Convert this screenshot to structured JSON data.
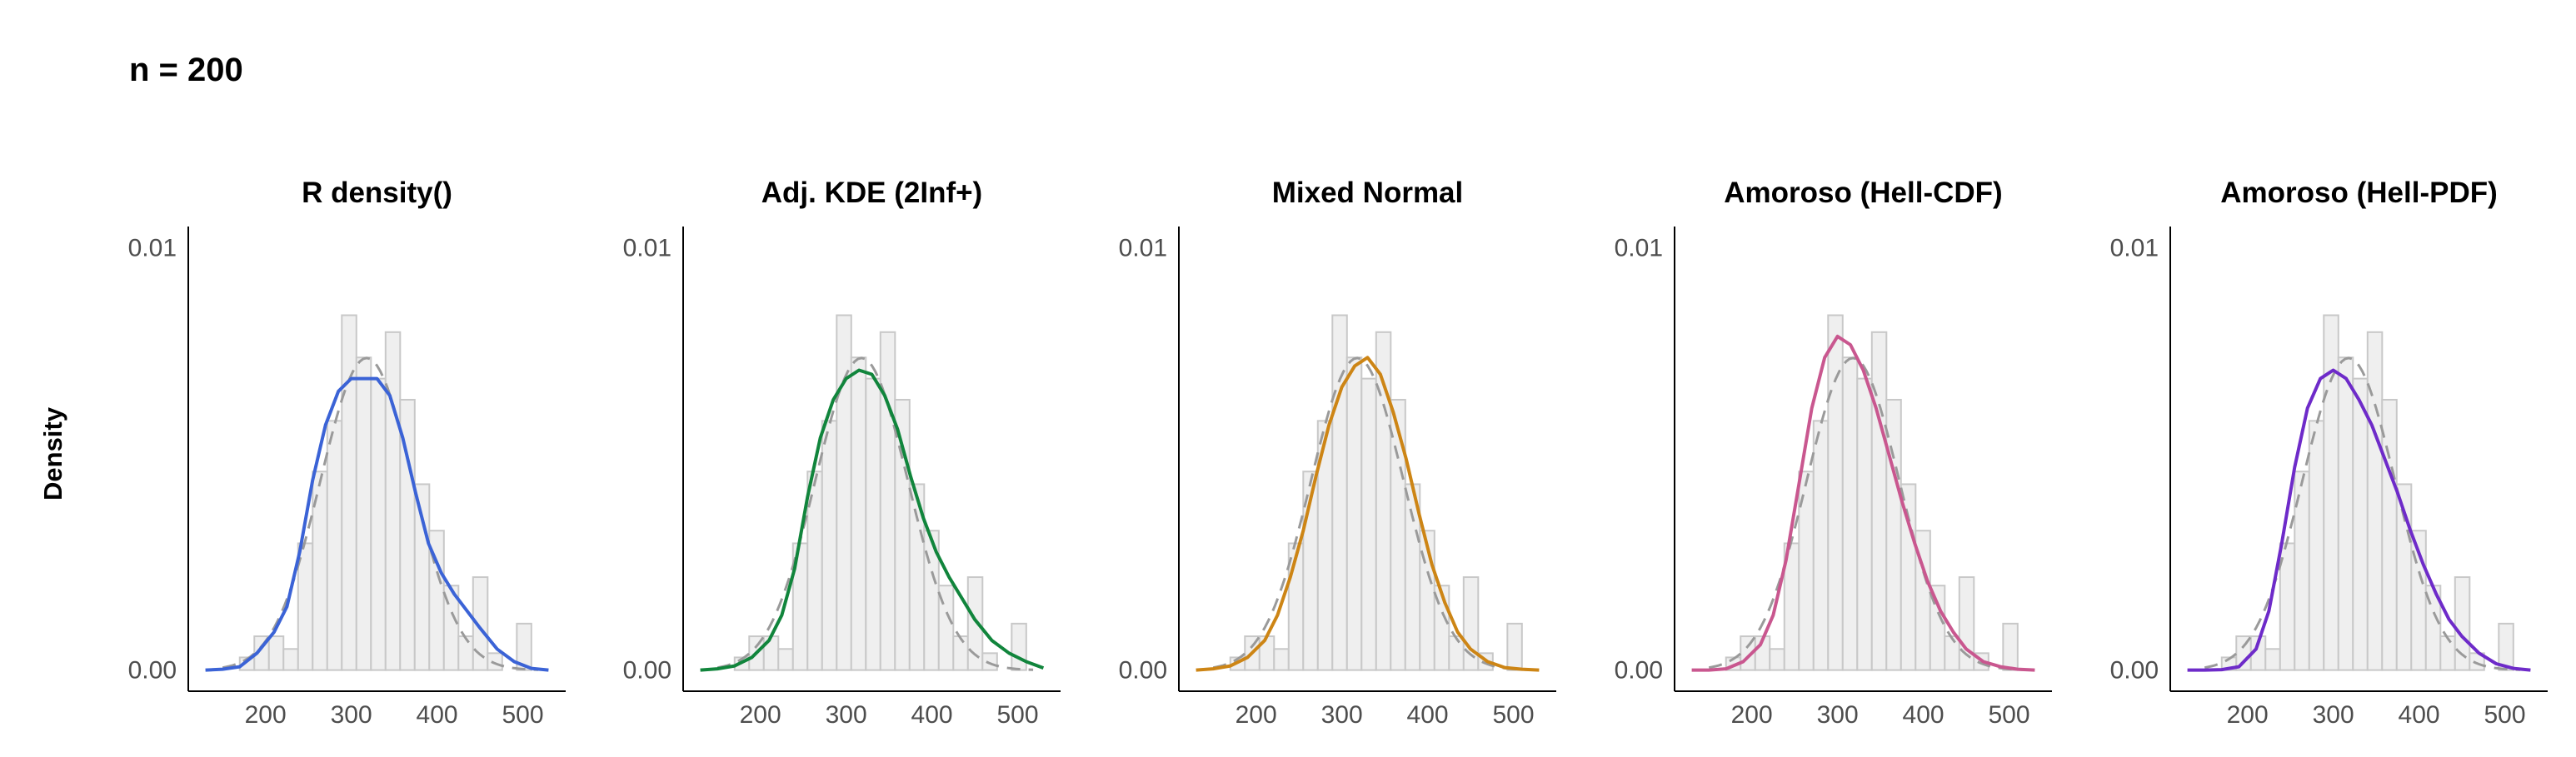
{
  "page": {
    "title": "n = 200",
    "ylabel": "Density"
  },
  "chart_data": {
    "type": "histogram",
    "shared": {
      "x_ticks": [
        200,
        300,
        400,
        500
      ],
      "y_ticks": [
        0.0,
        0.01
      ],
      "y_tick_labels": [
        "0.00",
        "0.01"
      ],
      "xlim": [
        110,
        550
      ],
      "ylim": [
        -0.0005,
        0.0105
      ],
      "bin_width": 17,
      "bins": [
        {
          "x": 170,
          "height": 0.0003
        },
        {
          "x": 187,
          "height": 0.0008
        },
        {
          "x": 204,
          "height": 0.0008
        },
        {
          "x": 221,
          "height": 0.0005
        },
        {
          "x": 238,
          "height": 0.003
        },
        {
          "x": 255,
          "height": 0.0047
        },
        {
          "x": 272,
          "height": 0.0059
        },
        {
          "x": 289,
          "height": 0.0084
        },
        {
          "x": 306,
          "height": 0.0074
        },
        {
          "x": 323,
          "height": 0.0069
        },
        {
          "x": 340,
          "height": 0.008
        },
        {
          "x": 357,
          "height": 0.0064
        },
        {
          "x": 374,
          "height": 0.0044
        },
        {
          "x": 391,
          "height": 0.0033
        },
        {
          "x": 408,
          "height": 0.002
        },
        {
          "x": 425,
          "height": 0.0008
        },
        {
          "x": 442,
          "height": 0.0022
        },
        {
          "x": 459,
          "height": 0.0004
        },
        {
          "x": 476,
          "height": 0.0
        },
        {
          "x": 493,
          "height": 0.0011
        }
      ],
      "reference_curve": {
        "style": "dashed",
        "color": "#9a9a9a",
        "mean": 318,
        "sd": 54
      }
    },
    "panels": [
      {
        "title": "R density()",
        "color": "#3b63d6",
        "curve_x": [
          130,
          150,
          170,
          190,
          210,
          225,
          240,
          255,
          270,
          285,
          300,
          315,
          330,
          345,
          360,
          375,
          390,
          405,
          420,
          435,
          450,
          470,
          490,
          510,
          530
        ],
        "curve_y": [
          0.0,
          2e-05,
          8e-05,
          0.0004,
          0.0009,
          0.0015,
          0.0028,
          0.0045,
          0.0058,
          0.0066,
          0.0069,
          0.0069,
          0.0069,
          0.0065,
          0.0055,
          0.0042,
          0.003,
          0.0023,
          0.0018,
          0.0014,
          0.001,
          0.0005,
          0.0002,
          4e-05,
          0.0
        ]
      },
      {
        "title": "Adj. KDE (2Inf+)",
        "color": "#11853c",
        "curve_x": [
          130,
          150,
          170,
          190,
          210,
          225,
          240,
          255,
          270,
          285,
          300,
          315,
          330,
          345,
          360,
          375,
          390,
          405,
          420,
          435,
          450,
          470,
          490,
          510,
          530
        ],
        "curve_y": [
          0.0,
          3e-05,
          0.0001,
          0.0003,
          0.0007,
          0.0013,
          0.0024,
          0.0041,
          0.0055,
          0.0064,
          0.0069,
          0.0071,
          0.007,
          0.0065,
          0.0057,
          0.0046,
          0.0036,
          0.0028,
          0.0022,
          0.0017,
          0.0012,
          0.0007,
          0.0004,
          0.0002,
          5e-05
        ]
      },
      {
        "title": "Mixed Normal",
        "color": "#cd8515",
        "curve_x": [
          130,
          150,
          170,
          190,
          210,
          225,
          240,
          255,
          270,
          285,
          300,
          315,
          330,
          345,
          360,
          375,
          390,
          405,
          420,
          435,
          450,
          470,
          490,
          510,
          530
        ],
        "curve_y": [
          0.0,
          3e-05,
          0.0001,
          0.0003,
          0.0007,
          0.0013,
          0.0022,
          0.0033,
          0.0046,
          0.0058,
          0.0067,
          0.0072,
          0.0074,
          0.007,
          0.0061,
          0.005,
          0.0037,
          0.0025,
          0.0016,
          0.0009,
          0.0005,
          0.0002,
          6e-05,
          2e-05,
          0.0
        ]
      },
      {
        "title": "Amoroso (Hell-CDF)",
        "color": "#c9578f",
        "curve_x": [
          130,
          150,
          170,
          190,
          210,
          225,
          240,
          255,
          270,
          285,
          300,
          315,
          330,
          345,
          360,
          375,
          390,
          405,
          420,
          435,
          450,
          470,
          490,
          510,
          530
        ],
        "curve_y": [
          0.0,
          0.0,
          3e-05,
          0.0002,
          0.0006,
          0.0013,
          0.0026,
          0.0044,
          0.0062,
          0.0074,
          0.0079,
          0.0077,
          0.0071,
          0.0062,
          0.0051,
          0.004,
          0.003,
          0.0021,
          0.0014,
          0.0009,
          0.0005,
          0.0002,
          8e-05,
          2e-05,
          0.0
        ]
      },
      {
        "title": "Amoroso (Hell-PDF)",
        "color": "#6e2bc9",
        "curve_x": [
          130,
          150,
          170,
          190,
          210,
          225,
          240,
          255,
          270,
          285,
          300,
          315,
          330,
          345,
          360,
          375,
          390,
          405,
          420,
          435,
          450,
          470,
          490,
          510,
          530
        ],
        "curve_y": [
          0.0,
          0.0,
          1e-05,
          8e-05,
          0.0005,
          0.0014,
          0.003,
          0.0048,
          0.0062,
          0.0069,
          0.0071,
          0.0069,
          0.0064,
          0.0058,
          0.005,
          0.0042,
          0.0033,
          0.0025,
          0.0018,
          0.0012,
          0.0008,
          0.0004,
          0.00015,
          4e-05,
          0.0
        ]
      }
    ]
  }
}
